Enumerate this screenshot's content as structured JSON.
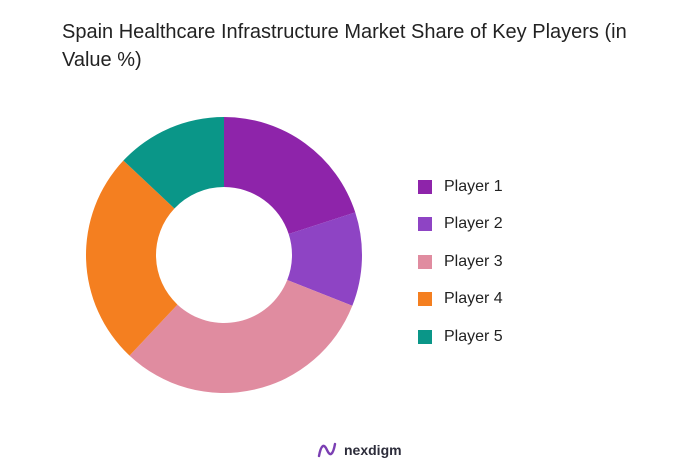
{
  "chart_data": {
    "type": "pie",
    "donut": true,
    "title": "Spain Healthcare Infrastructure Market Share of Key Players (in Value %)",
    "categories": [
      "Player 1",
      "Player 2",
      "Player 3",
      "Player 4",
      "Player 5"
    ],
    "values": [
      20,
      11,
      31,
      25,
      13
    ],
    "colors": [
      "#8e24aa",
      "#8e44c4",
      "#e08ca0",
      "#f47f20",
      "#0a9688"
    ],
    "legend_position": "right"
  },
  "brand": {
    "name": "nexdigm",
    "icon": "nexdigm-logo-icon"
  }
}
